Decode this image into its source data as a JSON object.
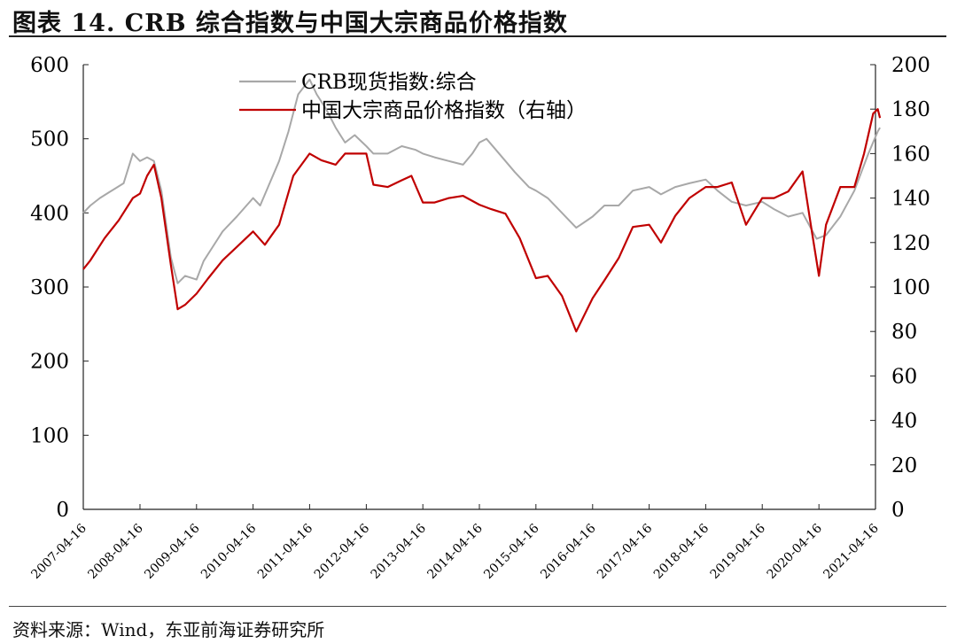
{
  "title": "图表 14. CRB 综合指数与中国大宗商品价格指数",
  "source": "资料来源：Wind，东亚前海证券研究所",
  "chart_data": {
    "type": "line",
    "x_ticks": [
      "2007-04-16",
      "2008-04-16",
      "2009-04-16",
      "2010-04-16",
      "2011-04-16",
      "2012-04-16",
      "2013-04-16",
      "2014-04-16",
      "2015-04-16",
      "2016-04-16",
      "2017-04-16",
      "2018-04-16",
      "2019-04-16",
      "2020-04-16",
      "2021-04-16"
    ],
    "y_left": {
      "min": 0,
      "max": 600,
      "ticks": [
        0,
        100,
        200,
        300,
        400,
        500,
        600
      ]
    },
    "y_right": {
      "min": 0,
      "max": 200,
      "ticks": [
        0,
        20,
        40,
        60,
        80,
        100,
        120,
        140,
        160,
        180,
        200
      ]
    },
    "legend_position": "top-center",
    "series": [
      {
        "name": "CRB现货指数:综合",
        "axis": "left",
        "color": "#a8a8a8",
        "points": [
          [
            "2007-04-16",
            400
          ],
          [
            "2007-06-01",
            410
          ],
          [
            "2007-08-01",
            420
          ],
          [
            "2007-10-01",
            428
          ],
          [
            "2008-01-01",
            440
          ],
          [
            "2008-03-01",
            480
          ],
          [
            "2008-04-16",
            470
          ],
          [
            "2008-06-01",
            475
          ],
          [
            "2008-07-15",
            470
          ],
          [
            "2008-09-01",
            430
          ],
          [
            "2008-11-01",
            340
          ],
          [
            "2008-12-15",
            305
          ],
          [
            "2009-02-01",
            315
          ],
          [
            "2009-04-16",
            310
          ],
          [
            "2009-06-01",
            335
          ],
          [
            "2009-08-01",
            355
          ],
          [
            "2009-10-01",
            375
          ],
          [
            "2010-01-01",
            395
          ],
          [
            "2010-04-16",
            420
          ],
          [
            "2010-06-01",
            410
          ],
          [
            "2010-08-01",
            440
          ],
          [
            "2010-10-01",
            470
          ],
          [
            "2010-12-01",
            510
          ],
          [
            "2011-02-01",
            560
          ],
          [
            "2011-04-16",
            580
          ],
          [
            "2011-06-01",
            560
          ],
          [
            "2011-08-01",
            540
          ],
          [
            "2011-10-01",
            515
          ],
          [
            "2011-12-01",
            495
          ],
          [
            "2012-02-01",
            505
          ],
          [
            "2012-04-16",
            490
          ],
          [
            "2012-06-01",
            480
          ],
          [
            "2012-09-01",
            480
          ],
          [
            "2012-12-01",
            490
          ],
          [
            "2013-03-01",
            485
          ],
          [
            "2013-04-16",
            480
          ],
          [
            "2013-07-01",
            475
          ],
          [
            "2013-10-01",
            470
          ],
          [
            "2014-01-01",
            465
          ],
          [
            "2014-03-01",
            480
          ],
          [
            "2014-04-16",
            495
          ],
          [
            "2014-06-01",
            500
          ],
          [
            "2014-08-01",
            485
          ],
          [
            "2014-10-01",
            470
          ],
          [
            "2014-12-01",
            455
          ],
          [
            "2015-03-01",
            435
          ],
          [
            "2015-04-16",
            430
          ],
          [
            "2015-07-01",
            420
          ],
          [
            "2015-10-01",
            400
          ],
          [
            "2016-01-01",
            380
          ],
          [
            "2016-04-16",
            395
          ],
          [
            "2016-07-01",
            410
          ],
          [
            "2016-10-01",
            410
          ],
          [
            "2017-01-01",
            430
          ],
          [
            "2017-04-16",
            435
          ],
          [
            "2017-07-01",
            425
          ],
          [
            "2017-10-01",
            435
          ],
          [
            "2018-01-01",
            440
          ],
          [
            "2018-04-16",
            445
          ],
          [
            "2018-07-01",
            430
          ],
          [
            "2018-10-01",
            415
          ],
          [
            "2019-01-01",
            410
          ],
          [
            "2019-04-16",
            415
          ],
          [
            "2019-07-01",
            405
          ],
          [
            "2019-10-01",
            395
          ],
          [
            "2020-01-01",
            400
          ],
          [
            "2020-04-01",
            365
          ],
          [
            "2020-06-01",
            370
          ],
          [
            "2020-09-01",
            395
          ],
          [
            "2020-12-01",
            430
          ],
          [
            "2021-03-01",
            480
          ],
          [
            "2021-05-01",
            510
          ],
          [
            "2021-05-15",
            515
          ]
        ]
      },
      {
        "name": "中国大宗商品价格指数（右轴）",
        "axis": "right",
        "color": "#c00000",
        "points": [
          [
            "2007-04-16",
            108
          ],
          [
            "2007-06-01",
            112
          ],
          [
            "2007-09-01",
            122
          ],
          [
            "2007-12-01",
            130
          ],
          [
            "2008-03-01",
            140
          ],
          [
            "2008-04-16",
            142
          ],
          [
            "2008-06-01",
            150
          ],
          [
            "2008-07-15",
            155
          ],
          [
            "2008-09-01",
            140
          ],
          [
            "2008-11-01",
            110
          ],
          [
            "2008-12-15",
            90
          ],
          [
            "2009-02-01",
            92
          ],
          [
            "2009-04-16",
            97
          ],
          [
            "2009-07-01",
            104
          ],
          [
            "2009-10-01",
            112
          ],
          [
            "2010-01-01",
            118
          ],
          [
            "2010-04-16",
            125
          ],
          [
            "2010-07-01",
            119
          ],
          [
            "2010-10-01",
            128
          ],
          [
            "2011-01-01",
            150
          ],
          [
            "2011-04-16",
            160
          ],
          [
            "2011-07-01",
            157
          ],
          [
            "2011-10-01",
            155
          ],
          [
            "2011-12-01",
            160
          ],
          [
            "2012-02-01",
            160
          ],
          [
            "2012-04-16",
            160
          ],
          [
            "2012-06-01",
            146
          ],
          [
            "2012-09-01",
            145
          ],
          [
            "2012-12-01",
            148
          ],
          [
            "2013-02-01",
            150
          ],
          [
            "2013-04-16",
            138
          ],
          [
            "2013-07-01",
            138
          ],
          [
            "2013-10-01",
            140
          ],
          [
            "2014-01-01",
            141
          ],
          [
            "2014-04-16",
            137
          ],
          [
            "2014-07-01",
            135
          ],
          [
            "2014-10-01",
            133
          ],
          [
            "2015-01-01",
            122
          ],
          [
            "2015-04-16",
            104
          ],
          [
            "2015-07-01",
            105
          ],
          [
            "2015-10-01",
            96
          ],
          [
            "2016-01-01",
            80
          ],
          [
            "2016-04-16",
            95
          ],
          [
            "2016-07-01",
            103
          ],
          [
            "2016-10-01",
            113
          ],
          [
            "2017-01-01",
            127
          ],
          [
            "2017-04-16",
            128
          ],
          [
            "2017-07-01",
            120
          ],
          [
            "2017-10-01",
            132
          ],
          [
            "2018-01-01",
            140
          ],
          [
            "2018-04-16",
            145
          ],
          [
            "2018-07-01",
            145
          ],
          [
            "2018-10-01",
            147
          ],
          [
            "2019-01-01",
            128
          ],
          [
            "2019-04-16",
            140
          ],
          [
            "2019-07-01",
            140
          ],
          [
            "2019-10-01",
            143
          ],
          [
            "2020-01-01",
            152
          ],
          [
            "2020-03-01",
            125
          ],
          [
            "2020-04-16",
            105
          ],
          [
            "2020-06-01",
            128
          ],
          [
            "2020-09-01",
            145
          ],
          [
            "2020-12-01",
            145
          ],
          [
            "2021-02-01",
            160
          ],
          [
            "2021-04-01",
            178
          ],
          [
            "2021-05-01",
            180
          ],
          [
            "2021-05-15",
            176
          ]
        ]
      }
    ]
  }
}
